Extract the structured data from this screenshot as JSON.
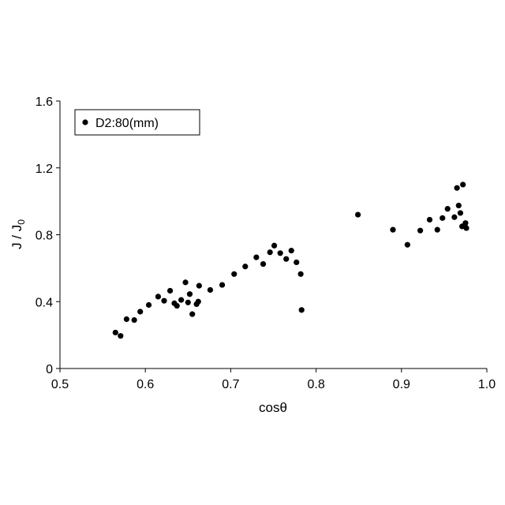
{
  "chart_data": {
    "type": "scatter",
    "title": "",
    "xlabel": "cosθ",
    "ylabel_main": "J / J",
    "ylabel_sub": "0",
    "xlim": [
      0.5,
      1.0
    ],
    "ylim": [
      0,
      1.6
    ],
    "xticks": [
      "0.5",
      "0.6",
      "0.7",
      "0.8",
      "0.9",
      "1.0"
    ],
    "yticks": [
      "0",
      "0.4",
      "0.8",
      "1.2",
      "1.6"
    ],
    "legend": {
      "position": "top-left",
      "label": "D2:80(mm)"
    },
    "grid": false,
    "marker_color": "#000000",
    "series": [
      {
        "name": "D2:80(mm)",
        "points": [
          [
            0.565,
            0.215
          ],
          [
            0.571,
            0.195
          ],
          [
            0.578,
            0.295
          ],
          [
            0.587,
            0.29
          ],
          [
            0.594,
            0.34
          ],
          [
            0.604,
            0.38
          ],
          [
            0.615,
            0.43
          ],
          [
            0.622,
            0.405
          ],
          [
            0.629,
            0.465
          ],
          [
            0.634,
            0.39
          ],
          [
            0.637,
            0.375
          ],
          [
            0.642,
            0.41
          ],
          [
            0.647,
            0.515
          ],
          [
            0.65,
            0.395
          ],
          [
            0.652,
            0.445
          ],
          [
            0.655,
            0.325
          ],
          [
            0.66,
            0.385
          ],
          [
            0.662,
            0.4
          ],
          [
            0.663,
            0.495
          ],
          [
            0.676,
            0.47
          ],
          [
            0.69,
            0.5
          ],
          [
            0.704,
            0.565
          ],
          [
            0.717,
            0.61
          ],
          [
            0.73,
            0.665
          ],
          [
            0.738,
            0.625
          ],
          [
            0.746,
            0.695
          ],
          [
            0.751,
            0.735
          ],
          [
            0.758,
            0.69
          ],
          [
            0.765,
            0.655
          ],
          [
            0.771,
            0.705
          ],
          [
            0.777,
            0.635
          ],
          [
            0.782,
            0.565
          ],
          [
            0.783,
            0.35
          ],
          [
            0.849,
            0.92
          ],
          [
            0.89,
            0.83
          ],
          [
            0.907,
            0.74
          ],
          [
            0.922,
            0.825
          ],
          [
            0.933,
            0.89
          ],
          [
            0.942,
            0.83
          ],
          [
            0.948,
            0.9
          ],
          [
            0.954,
            0.955
          ],
          [
            0.962,
            0.905
          ],
          [
            0.965,
            1.08
          ],
          [
            0.967,
            0.975
          ],
          [
            0.969,
            0.93
          ],
          [
            0.971,
            0.85
          ],
          [
            0.972,
            1.1
          ],
          [
            0.974,
            0.855
          ],
          [
            0.975,
            0.87
          ],
          [
            0.976,
            0.84
          ]
        ]
      }
    ]
  }
}
